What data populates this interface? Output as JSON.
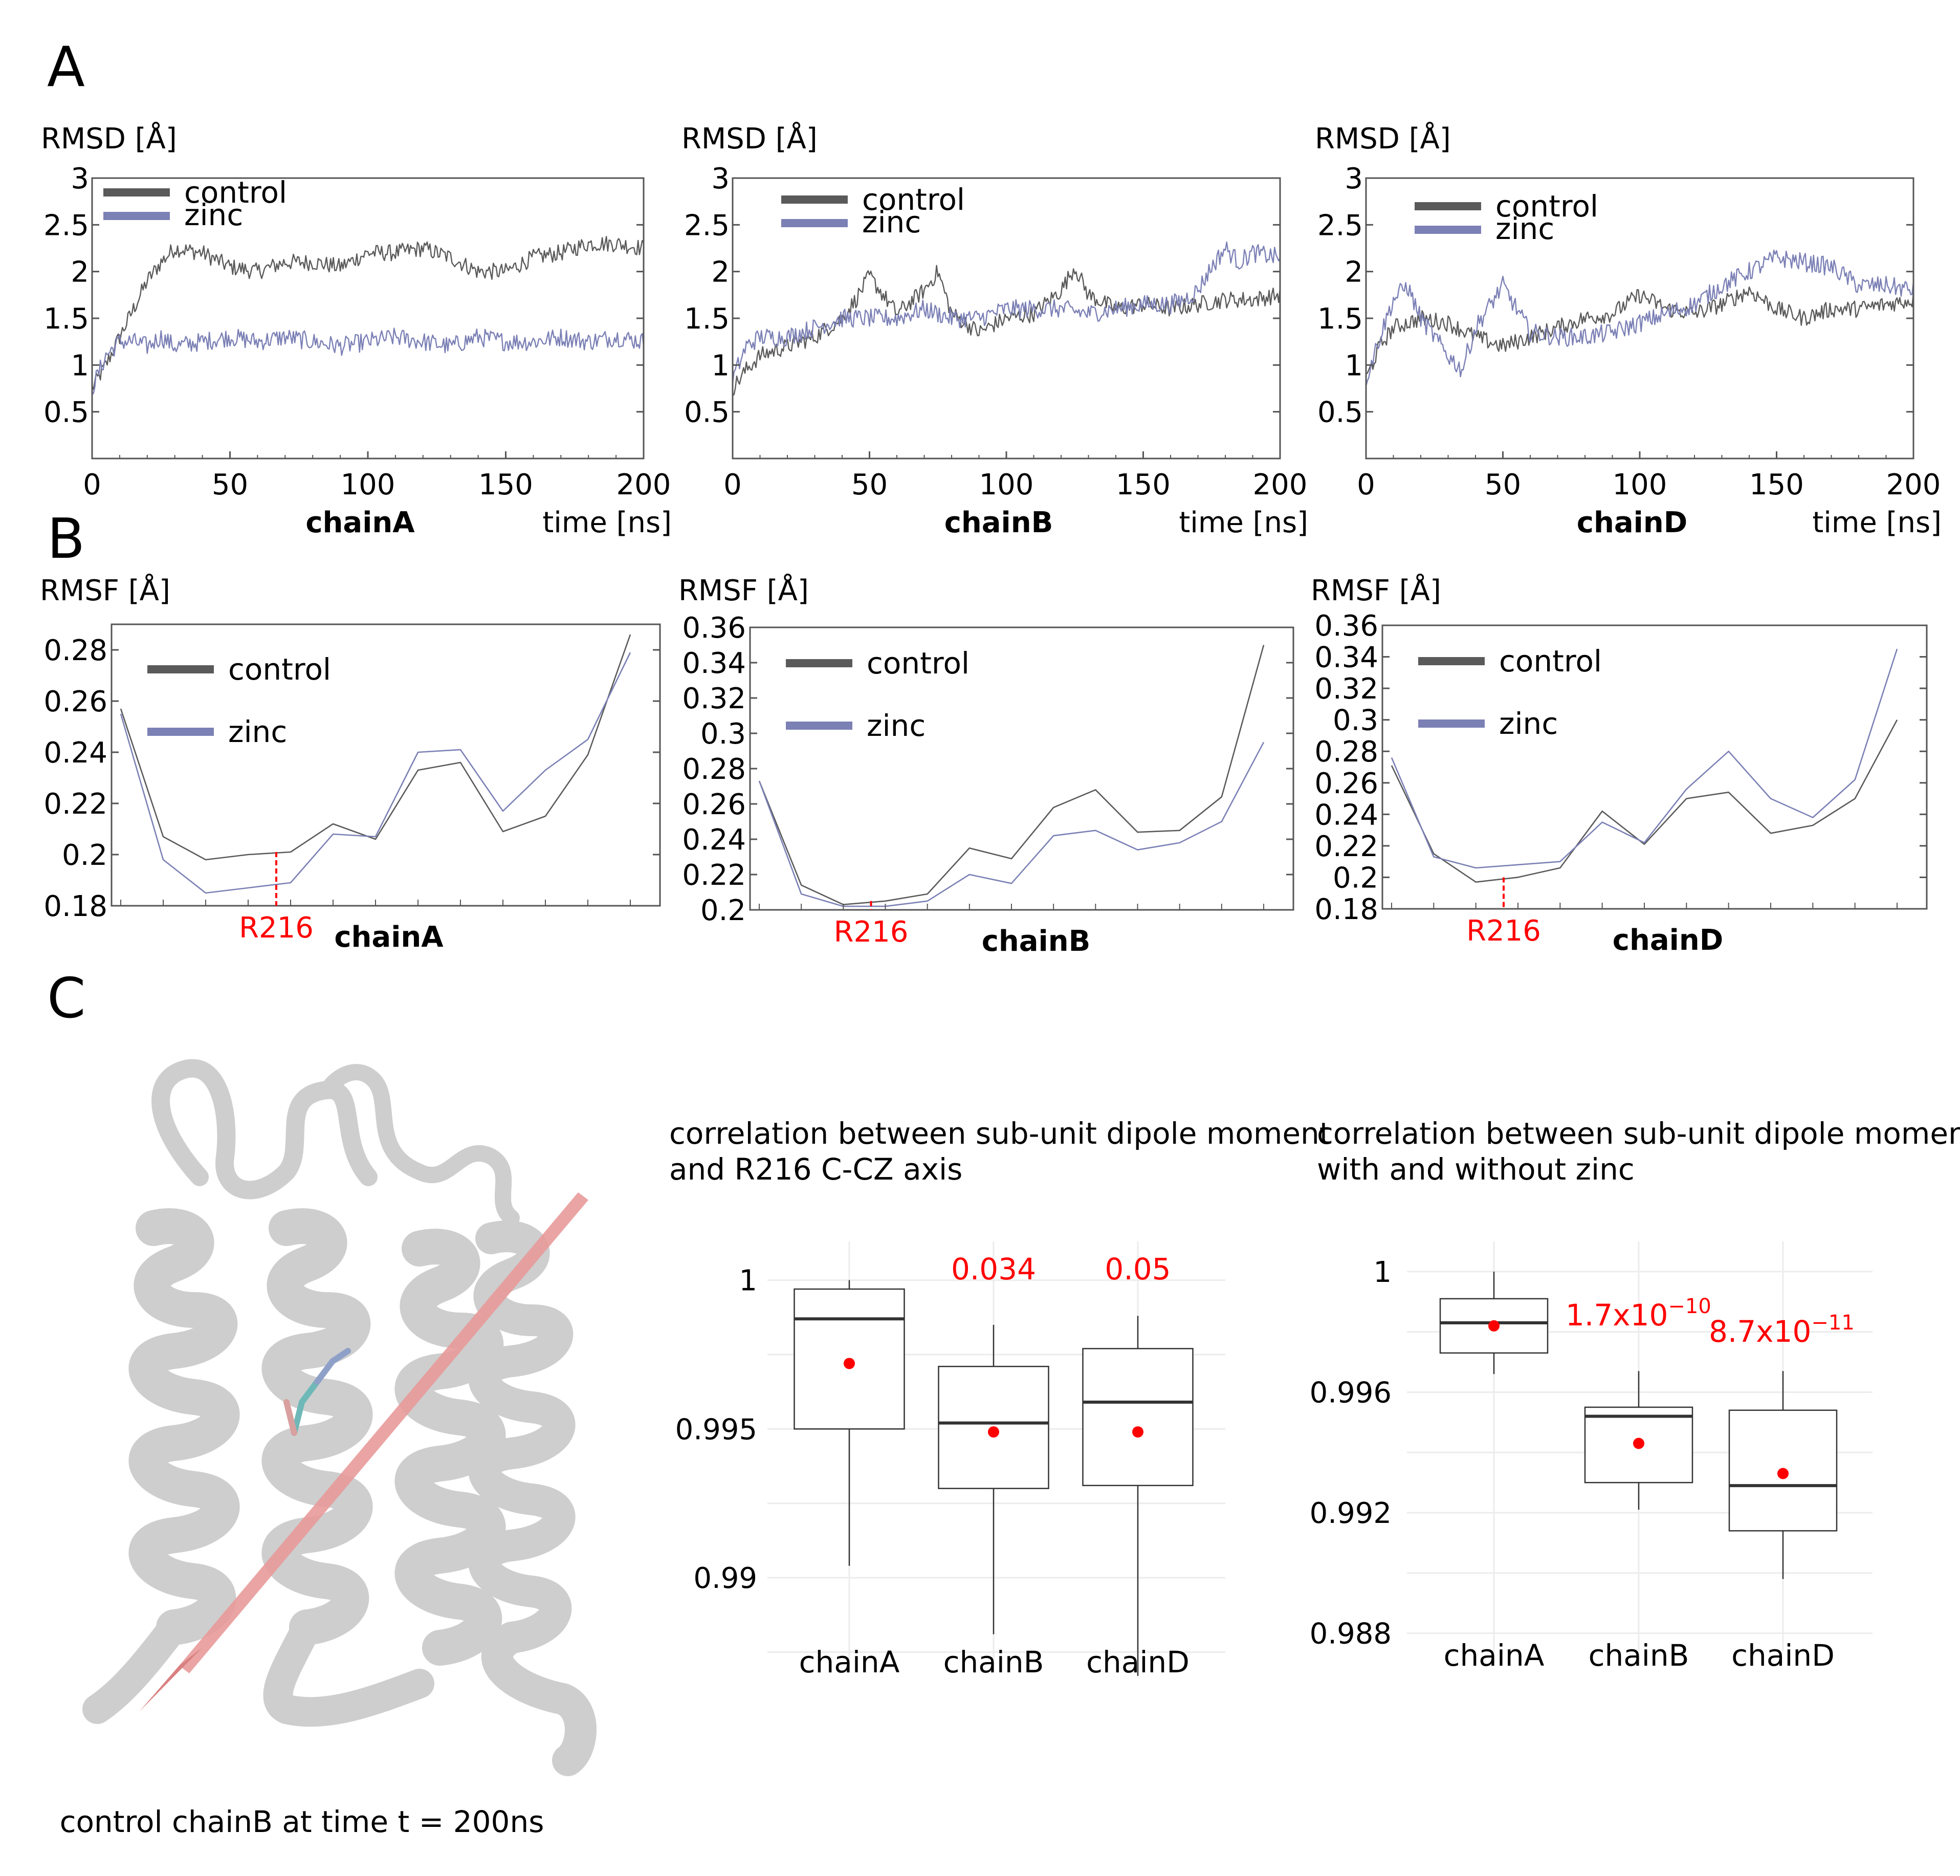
{
  "panel_labels": {
    "A": "A",
    "B": "B",
    "C": "C"
  },
  "colors": {
    "control": "#5a5a5a",
    "zinc": "#7b80b5",
    "annot": "#ff0000",
    "box_mean": "#ff0000",
    "arrow": "#e89a9a"
  },
  "rmsd_ylabel": "RMSD [Å]",
  "rmsf_ylabel": "RMSF [Å]",
  "time_label": "time [ns]",
  "legend": {
    "control": "control",
    "zinc": "zinc"
  },
  "structure_caption": "control chainB at time t = 200ns",
  "structure_icon": "protein-ribbon-structure",
  "chart_data": [
    {
      "type": "line",
      "title": "chainA",
      "ylabel": "RMSD [Å]",
      "xlabel": "time [ns]",
      "xlim": [
        0,
        200
      ],
      "ylim": [
        0,
        3
      ],
      "xticks": [
        "0",
        "50",
        "100",
        "150",
        "200"
      ],
      "yticks": [
        "0.5",
        "1",
        "1.5",
        "2",
        "2.5",
        "3"
      ],
      "ytick_values": [
        0.5,
        1,
        1.5,
        2,
        2.5,
        3
      ],
      "legend_position": "top-left",
      "series": [
        {
          "name": "control",
          "x": [
            0,
            5,
            10,
            15,
            20,
            25,
            30,
            40,
            50,
            60,
            70,
            80,
            90,
            100,
            110,
            120,
            130,
            140,
            150,
            160,
            170,
            180,
            190,
            200
          ],
          "values": [
            0.75,
            1.0,
            1.3,
            1.6,
            1.9,
            2.1,
            2.25,
            2.2,
            2.05,
            2.0,
            2.1,
            2.1,
            2.05,
            2.2,
            2.2,
            2.25,
            2.15,
            2.0,
            2.0,
            2.15,
            2.2,
            2.3,
            2.3,
            2.25
          ]
        },
        {
          "name": "zinc",
          "x": [
            0,
            5,
            10,
            15,
            20,
            25,
            30,
            40,
            50,
            60,
            70,
            80,
            90,
            100,
            110,
            120,
            130,
            140,
            150,
            160,
            170,
            180,
            190,
            200
          ],
          "values": [
            0.75,
            1.1,
            1.25,
            1.25,
            1.2,
            1.3,
            1.2,
            1.25,
            1.3,
            1.25,
            1.3,
            1.25,
            1.2,
            1.25,
            1.3,
            1.25,
            1.2,
            1.3,
            1.25,
            1.25,
            1.3,
            1.25,
            1.3,
            1.25
          ]
        }
      ]
    },
    {
      "type": "line",
      "title": "chainB",
      "ylabel": "RMSD [Å]",
      "xlabel": "time [ns]",
      "xlim": [
        0,
        200
      ],
      "ylim": [
        0,
        3
      ],
      "xticks": [
        "0",
        "50",
        "100",
        "150",
        "200"
      ],
      "yticks": [
        "0.5",
        "1",
        "1.5",
        "2",
        "2.5",
        "3"
      ],
      "ytick_values": [
        0.5,
        1,
        1.5,
        2,
        2.5,
        3
      ],
      "legend_position": "top-left",
      "series": [
        {
          "name": "control",
          "x": [
            0,
            5,
            10,
            20,
            30,
            40,
            45,
            50,
            55,
            60,
            70,
            75,
            80,
            90,
            100,
            110,
            120,
            125,
            130,
            140,
            150,
            160,
            170,
            180,
            190,
            200
          ],
          "values": [
            0.75,
            0.95,
            1.1,
            1.2,
            1.3,
            1.5,
            1.7,
            1.95,
            1.75,
            1.55,
            1.8,
            2.0,
            1.55,
            1.35,
            1.5,
            1.55,
            1.8,
            2.05,
            1.75,
            1.6,
            1.65,
            1.6,
            1.65,
            1.7,
            1.7,
            1.75
          ]
        },
        {
          "name": "zinc",
          "x": [
            0,
            5,
            10,
            20,
            30,
            40,
            50,
            60,
            70,
            80,
            90,
            100,
            110,
            120,
            130,
            140,
            150,
            160,
            165,
            170,
            175,
            180,
            185,
            190,
            200
          ],
          "values": [
            0.85,
            1.2,
            1.3,
            1.3,
            1.4,
            1.5,
            1.5,
            1.5,
            1.6,
            1.5,
            1.5,
            1.6,
            1.6,
            1.6,
            1.55,
            1.6,
            1.65,
            1.65,
            1.7,
            1.8,
            2.05,
            2.25,
            2.1,
            2.2,
            2.15
          ]
        }
      ]
    },
    {
      "type": "line",
      "title": "chainD",
      "ylabel": "RMSD [Å]",
      "xlabel": "time [ns]",
      "xlim": [
        0,
        200
      ],
      "ylim": [
        0,
        3
      ],
      "xticks": [
        "0",
        "50",
        "100",
        "150",
        "200"
      ],
      "yticks": [
        "0.5",
        "1",
        "1.5",
        "2",
        "2.5",
        "3"
      ],
      "ytick_values": [
        0.5,
        1,
        1.5,
        2,
        2.5,
        3
      ],
      "legend_position": "top-left",
      "series": [
        {
          "name": "control",
          "x": [
            0,
            5,
            10,
            20,
            30,
            40,
            50,
            60,
            70,
            80,
            90,
            100,
            110,
            120,
            130,
            140,
            150,
            160,
            170,
            180,
            190,
            200
          ],
          "values": [
            0.85,
            1.2,
            1.4,
            1.5,
            1.45,
            1.3,
            1.2,
            1.3,
            1.4,
            1.5,
            1.55,
            1.75,
            1.6,
            1.55,
            1.65,
            1.8,
            1.6,
            1.5,
            1.6,
            1.6,
            1.65,
            1.7
          ]
        },
        {
          "name": "zinc",
          "x": [
            0,
            5,
            10,
            15,
            20,
            30,
            35,
            40,
            50,
            60,
            70,
            80,
            90,
            100,
            110,
            120,
            130,
            140,
            150,
            160,
            170,
            180,
            190,
            200
          ],
          "values": [
            0.85,
            1.3,
            1.7,
            1.85,
            1.5,
            1.1,
            0.95,
            1.4,
            1.85,
            1.35,
            1.3,
            1.3,
            1.35,
            1.45,
            1.55,
            1.65,
            1.85,
            2.0,
            2.15,
            2.1,
            2.05,
            1.85,
            1.85,
            1.8
          ]
        }
      ]
    },
    {
      "type": "line",
      "title": "chainA",
      "ylabel": "RMSF [Å]",
      "xlabel": "",
      "ylim": [
        0.18,
        0.29
      ],
      "yticks": [
        "0.18",
        "0.2",
        "0.22",
        "0.24",
        "0.26",
        "0.28"
      ],
      "ytick_values": [
        0.18,
        0.2,
        0.22,
        0.24,
        0.26,
        0.28
      ],
      "marker_label": "R216",
      "marker_index": 4,
      "legend_position": "top-left",
      "series": [
        {
          "name": "control",
          "values": [
            0.257,
            0.207,
            0.198,
            0.2,
            0.201,
            0.212,
            0.206,
            0.233,
            0.236,
            0.209,
            0.215,
            0.239,
            0.286
          ]
        },
        {
          "name": "zinc",
          "values": [
            0.255,
            0.198,
            0.185,
            0.187,
            0.189,
            0.208,
            0.207,
            0.24,
            0.241,
            0.217,
            0.233,
            0.245,
            0.279
          ]
        }
      ]
    },
    {
      "type": "line",
      "title": "chainB",
      "ylabel": "RMSF [Å]",
      "xlabel": "",
      "ylim": [
        0.2,
        0.36
      ],
      "yticks": [
        "0.2",
        "0.22",
        "0.24",
        "0.26",
        "0.28",
        "0.3",
        "0.32",
        "0.34",
        "0.36"
      ],
      "ytick_values": [
        0.2,
        0.22,
        0.24,
        0.26,
        0.28,
        0.3,
        0.32,
        0.34,
        0.36
      ],
      "marker_label": "R216",
      "marker_index": 3,
      "legend_position": "top-left",
      "series": [
        {
          "name": "control",
          "values": [
            0.273,
            0.214,
            0.203,
            0.205,
            0.209,
            0.235,
            0.229,
            0.258,
            0.268,
            0.244,
            0.245,
            0.264,
            0.35
          ]
        },
        {
          "name": "zinc",
          "values": [
            0.273,
            0.209,
            0.202,
            0.202,
            0.205,
            0.22,
            0.215,
            0.242,
            0.245,
            0.234,
            0.238,
            0.25,
            0.295
          ]
        }
      ]
    },
    {
      "type": "line",
      "title": "chainD",
      "ylabel": "RMSF [Å]",
      "xlabel": "",
      "ylim": [
        0.18,
        0.36
      ],
      "yticks": [
        "0.18",
        "0.2",
        "0.22",
        "0.24",
        "0.26",
        "0.28",
        "0.3",
        "0.32",
        "0.34",
        "0.36"
      ],
      "ytick_values": [
        0.18,
        0.2,
        0.22,
        0.24,
        0.26,
        0.28,
        0.3,
        0.32,
        0.34,
        0.36
      ],
      "marker_label": "R216",
      "marker_index": 3,
      "legend_position": "top-left",
      "series": [
        {
          "name": "control",
          "values": [
            0.271,
            0.215,
            0.197,
            0.2,
            0.206,
            0.242,
            0.221,
            0.25,
            0.254,
            0.228,
            0.233,
            0.25,
            0.3
          ]
        },
        {
          "name": "zinc",
          "values": [
            0.276,
            0.213,
            0.206,
            0.208,
            0.21,
            0.235,
            0.222,
            0.256,
            0.28,
            0.25,
            0.238,
            0.262,
            0.345
          ]
        }
      ]
    },
    {
      "type": "box",
      "title": "correlation between sub-unit dipole moment and R216 C-CZ axis",
      "categories": [
        "chainA",
        "chainB",
        "chainD"
      ],
      "ylim": [
        0.9872,
        1.0013
      ],
      "yticks": [
        "0.99",
        "0.995",
        "1"
      ],
      "ytick_values": [
        0.99,
        0.995,
        1.0
      ],
      "gridlines": [
        0.9875,
        0.99,
        0.9925,
        0.995,
        0.9975,
        1.0
      ],
      "boxes": [
        {
          "category": "chainA",
          "min": 0.9904,
          "q1": 0.995,
          "median": 0.9987,
          "q3": 0.9997,
          "max": 1.0,
          "mean": 0.9972,
          "annotation": ""
        },
        {
          "category": "chainB",
          "min": 0.9881,
          "q1": 0.993,
          "median": 0.9952,
          "q3": 0.9971,
          "max": 0.9985,
          "mean": 0.9949,
          "annotation": "0.034"
        },
        {
          "category": "chainD",
          "min": 0.9867,
          "q1": 0.9931,
          "median": 0.9959,
          "q3": 0.9977,
          "max": 0.9988,
          "mean": 0.9949,
          "annotation": "0.05"
        }
      ]
    },
    {
      "type": "box",
      "title": "correlation between sub-unit dipole moment with and without zinc",
      "categories": [
        "chainA",
        "chainB",
        "chainD"
      ],
      "ylim": [
        0.9874,
        1.001
      ],
      "yticks": [
        "0.988",
        "0.992",
        "0.996",
        "1"
      ],
      "ytick_values": [
        0.988,
        0.992,
        0.996,
        1.0
      ],
      "gridlines": [
        0.988,
        0.99,
        0.992,
        0.994,
        0.996,
        0.998,
        1.0
      ],
      "boxes": [
        {
          "category": "chainA",
          "min": 0.9966,
          "q1": 0.9973,
          "median": 0.9983,
          "q3": 0.9991,
          "max": 1.0,
          "mean": 0.9982,
          "annotation": ""
        },
        {
          "category": "chainB",
          "min": 0.9921,
          "q1": 0.993,
          "median": 0.9952,
          "q3": 0.9955,
          "max": 0.9967,
          "mean": 0.9943,
          "annotation_base": "1.7x10",
          "annotation_exp": "−10"
        },
        {
          "category": "chainD",
          "min": 0.9898,
          "q1": 0.9914,
          "median": 0.9929,
          "q3": 0.9954,
          "max": 0.9967,
          "mean": 0.9933,
          "annotation_base": "8.7x10",
          "annotation_exp": "−11"
        }
      ]
    }
  ]
}
